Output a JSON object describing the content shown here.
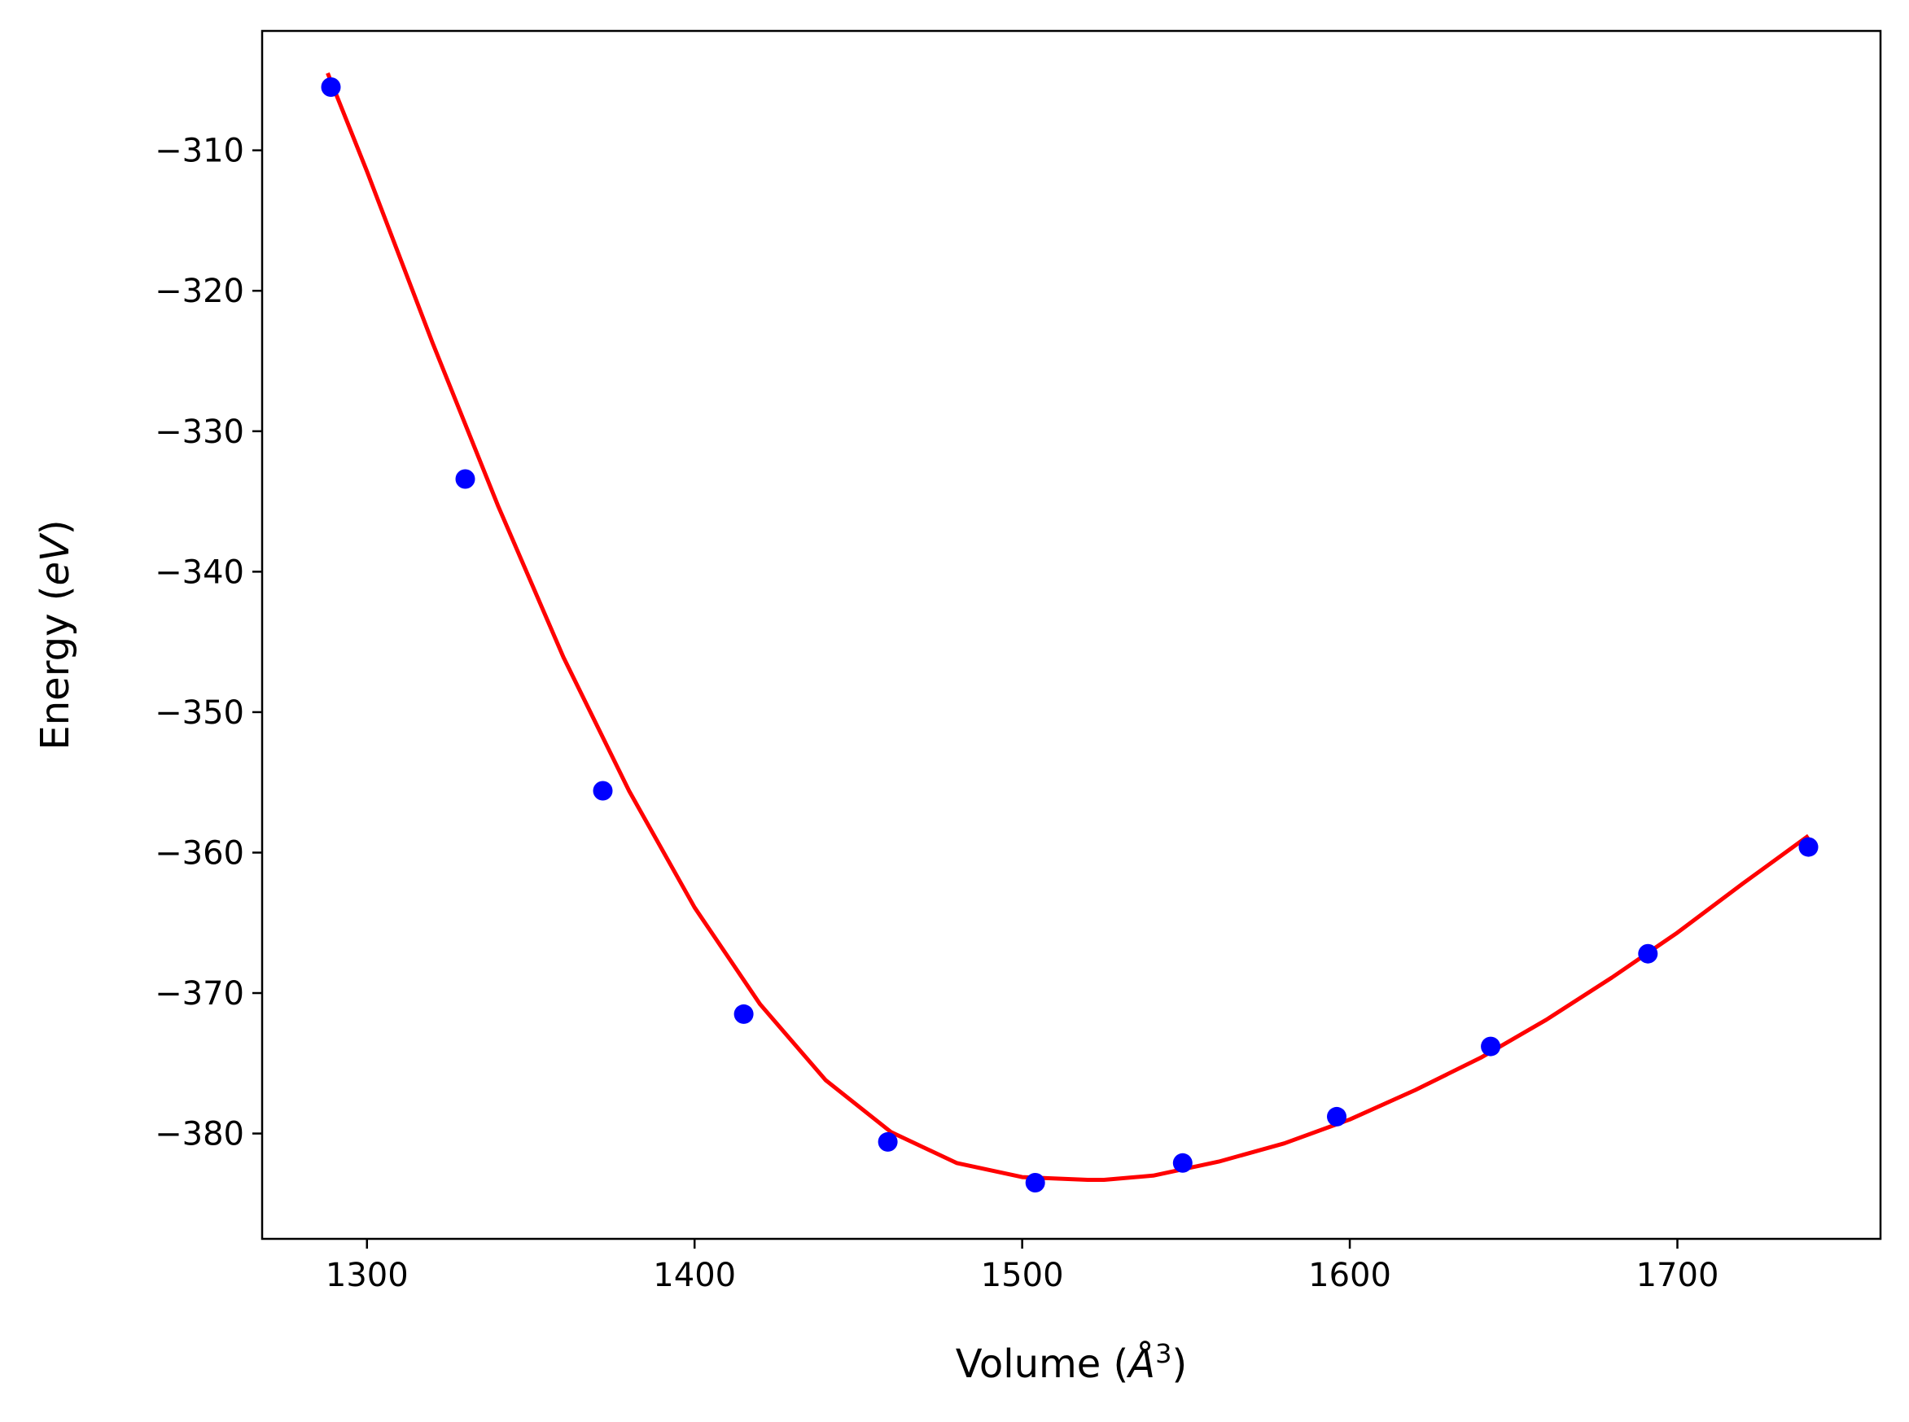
{
  "chart_data": {
    "type": "scatter",
    "title": "",
    "xlabel": "Volume (Å³)",
    "ylabel": "Energy (eV)",
    "xlabel_parts": {
      "prefix": "Volume (",
      "unit_base": "Å",
      "unit_exp": "3",
      "suffix": ")"
    },
    "ylabel_parts": {
      "prefix": "Energy (",
      "unit": "eV",
      "suffix": ")"
    },
    "xlim": [
      1268,
      1762
    ],
    "ylim": [
      -387.5,
      -301.5
    ],
    "x_ticks": [
      1300,
      1400,
      1500,
      1600,
      1700
    ],
    "x_tick_labels": [
      "1300",
      "1400",
      "1500",
      "1600",
      "1700"
    ],
    "y_ticks": [
      -310,
      -320,
      -330,
      -340,
      -350,
      -360,
      -370,
      -380
    ],
    "y_tick_labels": [
      "−310",
      "−320",
      "−330",
      "−340",
      "−350",
      "−360",
      "−370",
      "−380"
    ],
    "grid": false,
    "series": [
      {
        "kind": "points",
        "color": "#0000ff",
        "x": [
          1289,
          1330,
          1372,
          1415,
          1459,
          1504,
          1549,
          1596,
          1643,
          1691,
          1740
        ],
        "y": [
          -305.5,
          -333.4,
          -355.6,
          -371.5,
          -380.6,
          -383.5,
          -382.1,
          -378.8,
          -373.8,
          -367.2,
          -359.6
        ]
      },
      {
        "kind": "fit-line",
        "color": "#ff0000",
        "x": [
          1288,
          1300,
          1320,
          1340,
          1360,
          1380,
          1400,
          1420,
          1440,
          1460,
          1480,
          1500,
          1520,
          1525,
          1540,
          1560,
          1580,
          1600,
          1620,
          1640,
          1660,
          1680,
          1700,
          1720,
          1740
        ],
        "y": [
          -304.5,
          -311.5,
          -323.7,
          -335.3,
          -346.1,
          -355.6,
          -363.9,
          -370.8,
          -376.2,
          -379.9,
          -382.1,
          -383.1,
          -383.3,
          -383.3,
          -383.0,
          -382.0,
          -380.7,
          -379.0,
          -376.9,
          -374.6,
          -371.9,
          -368.9,
          -365.7,
          -362.2,
          -358.8
        ]
      }
    ]
  }
}
